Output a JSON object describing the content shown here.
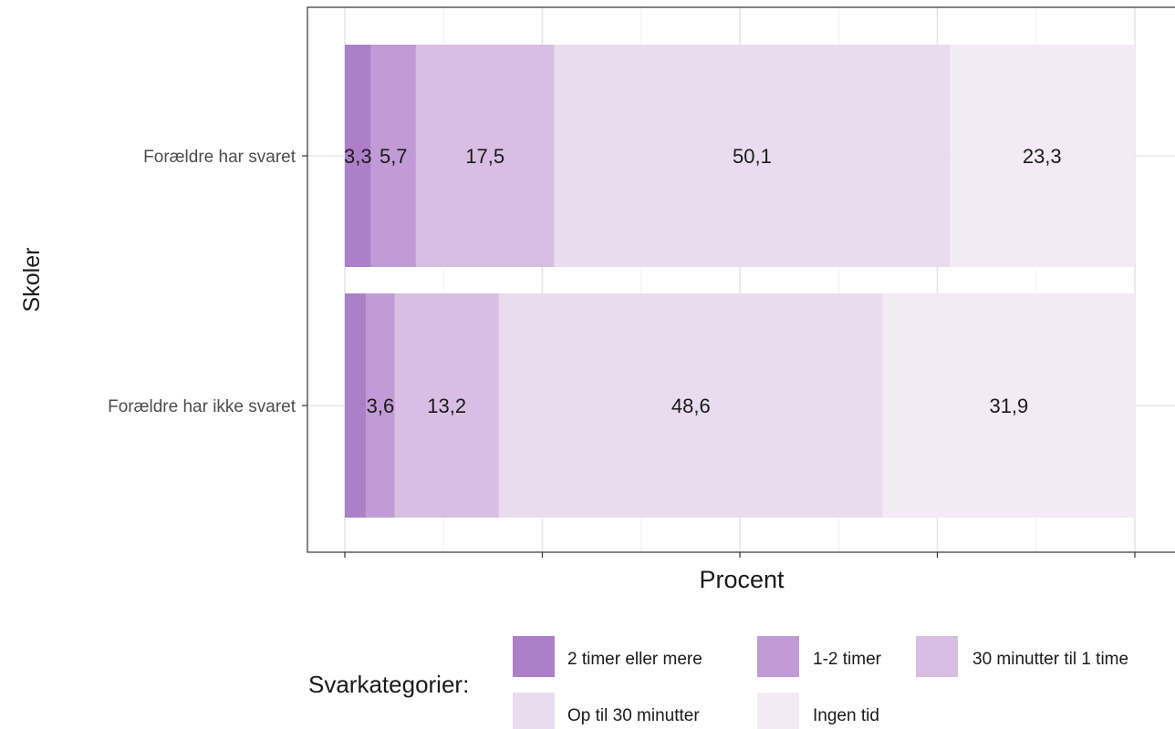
{
  "chart_data": {
    "type": "bar",
    "orientation": "horizontal",
    "stacked": true,
    "xlabel": "Procent",
    "ylabel": "Skoler",
    "xlim": [
      0,
      100
    ],
    "x_ticks": [
      0,
      25,
      50,
      75,
      100
    ],
    "grid": true,
    "categories": [
      "Forældre har svaret",
      "Forældre har ikke svaret"
    ],
    "series": [
      {
        "name": "2 timer eller mere",
        "values": [
          3.3,
          2.7
        ],
        "labels": [
          "3,3",
          ""
        ],
        "color": "#ad7fc9"
      },
      {
        "name": "1-2 timer",
        "values": [
          5.7,
          3.6
        ],
        "labels": [
          "5,7",
          "3,6"
        ],
        "color": "#c19bd5"
      },
      {
        "name": "30 minutter til 1 time",
        "values": [
          17.5,
          13.2
        ],
        "labels": [
          "17,5",
          "13,2"
        ],
        "color": "#d8bee3"
      },
      {
        "name": "Op til 30 minutter",
        "values": [
          50.1,
          48.6
        ],
        "labels": [
          "50,1",
          "48,6"
        ],
        "color": "#eadcef"
      },
      {
        "name": "Ingen tid",
        "values": [
          23.3,
          31.9
        ],
        "labels": [
          "23,3",
          "31,9"
        ],
        "color": "#f3eaf5"
      }
    ],
    "legend": {
      "title": "Svarkategorier:",
      "position": "bottom"
    }
  }
}
